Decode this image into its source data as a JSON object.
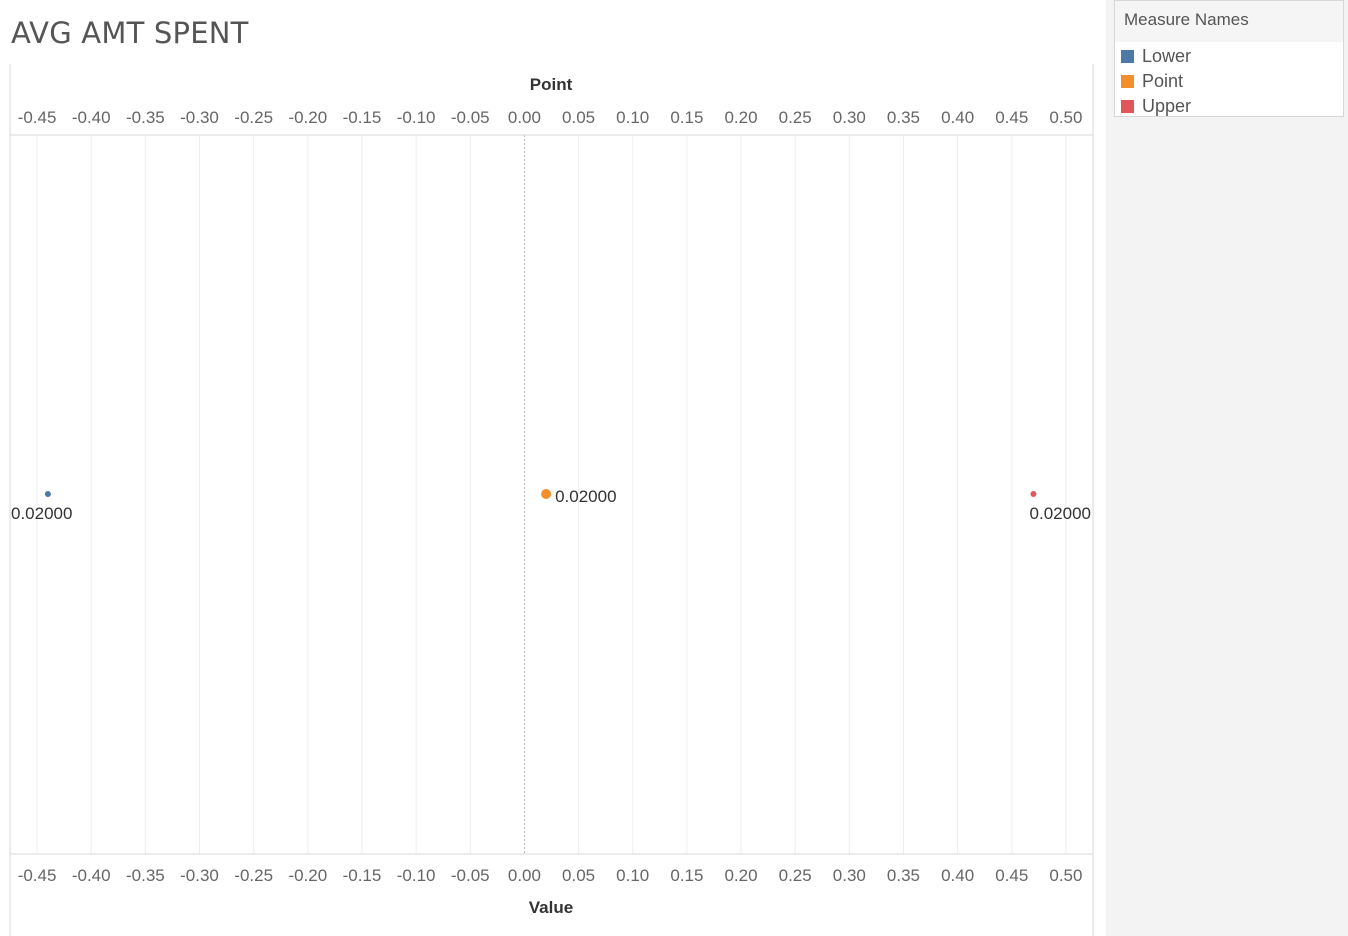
{
  "chart_data": {
    "type": "scatter",
    "title": "AVG AMT SPENT",
    "xlabel_top": "Point",
    "xlabel_bottom": "Value",
    "xlim": [
      -0.475,
      0.525
    ],
    "ticks": [
      -0.45,
      -0.4,
      -0.35,
      -0.3,
      -0.25,
      -0.2,
      -0.15,
      -0.1,
      -0.05,
      0.0,
      0.05,
      0.1,
      0.15,
      0.2,
      0.25,
      0.3,
      0.35,
      0.4,
      0.45,
      0.5
    ],
    "tick_labels": [
      "-0.45",
      "-0.40",
      "-0.35",
      "-0.30",
      "-0.25",
      "-0.20",
      "-0.15",
      "-0.10",
      "-0.05",
      "0.00",
      "0.05",
      "0.10",
      "0.15",
      "0.20",
      "0.25",
      "0.30",
      "0.35",
      "0.40",
      "0.45",
      "0.50"
    ],
    "grid": true,
    "legend_position": "top-right",
    "series": [
      {
        "name": "Lower",
        "x": -0.44,
        "label": "0.02000",
        "color": "#4e79a7"
      },
      {
        "name": "Point",
        "x": 0.02,
        "label": "0.02000",
        "color": "#f28e2b"
      },
      {
        "name": "Upper",
        "x": 0.47,
        "label": "0.02000",
        "color": "#e15759"
      }
    ]
  },
  "legend": {
    "title": "Measure Names",
    "items": [
      {
        "label": "Lower",
        "color": "#4e79a7"
      },
      {
        "label": "Point",
        "color": "#f28e2b"
      },
      {
        "label": "Upper",
        "color": "#e15759"
      }
    ]
  }
}
